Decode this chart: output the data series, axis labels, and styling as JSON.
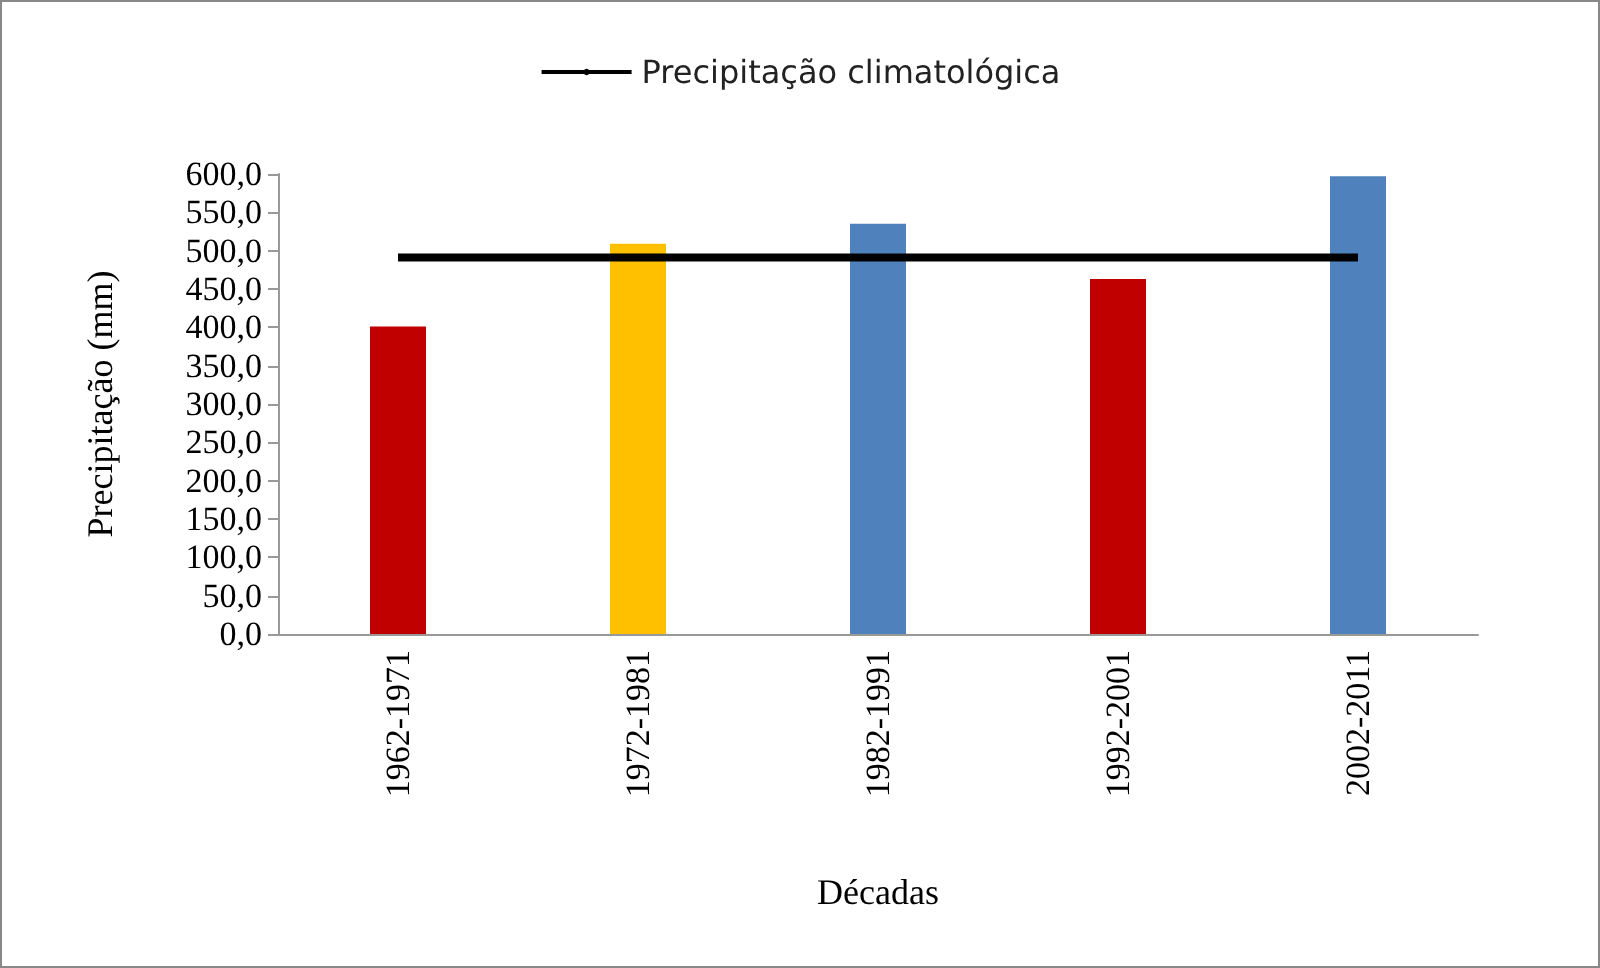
{
  "chart_data": {
    "type": "bar",
    "xlabel": "Décadas",
    "ylabel": "Precipitação (mm)",
    "categories": [
      "1962-1971",
      "1972-1981",
      "1982-1991",
      "1992-2001",
      "2002-2011"
    ],
    "series": [
      {
        "values": [
          401,
          509,
          535,
          463,
          597
        ],
        "colors": [
          "#c00000",
          "#ffc000",
          "#4f81bd",
          "#c00000",
          "#4f81bd"
        ]
      },
      {
        "type": "line",
        "name": "Precipitação climatológica",
        "color": "#000000",
        "values": [
          491,
          491,
          491,
          491,
          491
        ]
      }
    ],
    "ylim": [
      0,
      600
    ],
    "yticks": [
      {
        "value": 0,
        "label": "0,0"
      },
      {
        "value": 50,
        "label": "50,0"
      },
      {
        "value": 100,
        "label": "100,0"
      },
      {
        "value": 150,
        "label": "150,0"
      },
      {
        "value": 200,
        "label": "200,0"
      },
      {
        "value": 250,
        "label": "250,0"
      },
      {
        "value": 300,
        "label": "300,0"
      },
      {
        "value": 350,
        "label": "350,0"
      },
      {
        "value": 400,
        "label": "400,0"
      },
      {
        "value": 450,
        "label": "450,0"
      },
      {
        "value": 500,
        "label": "500,0"
      },
      {
        "value": 550,
        "label": "550,0"
      },
      {
        "value": 600,
        "label": "600,0"
      }
    ],
    "grid": false,
    "legend": "top",
    "marker": "none",
    "line_style": "solid"
  }
}
